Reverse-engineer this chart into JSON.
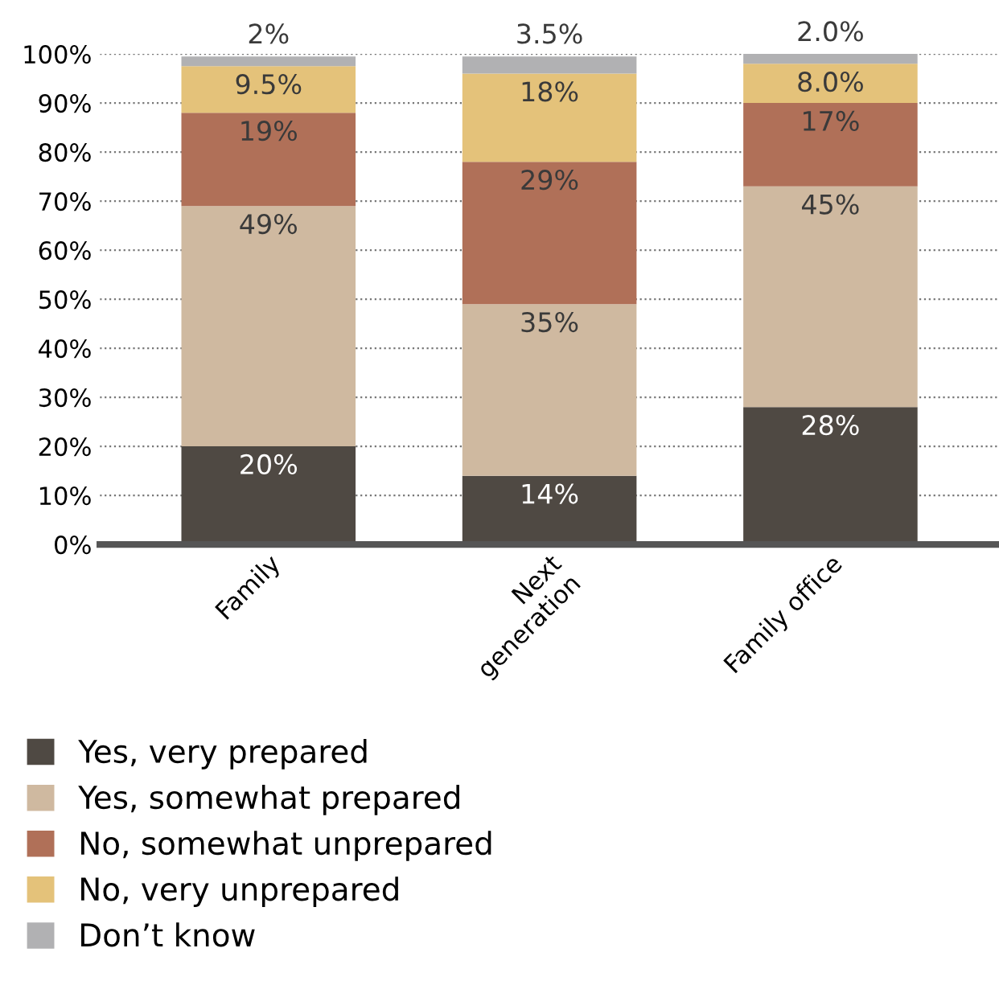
{
  "chart_data": {
    "type": "bar",
    "stacked": true,
    "categories": [
      "Family",
      "Next\ngeneration",
      "Family office"
    ],
    "series": [
      {
        "name": "Yes, very prepared",
        "color": "#4f4943",
        "values": [
          20,
          14,
          28
        ],
        "value_labels": [
          "20%",
          "14%",
          "28%"
        ]
      },
      {
        "name": "Yes, somewhat prepared",
        "color": "#cfb9a0",
        "values": [
          49,
          35,
          45
        ],
        "value_labels": [
          "49%",
          "35%",
          "45%"
        ]
      },
      {
        "name": "No, somewhat unprepared",
        "color": "#b07058",
        "values": [
          19,
          29,
          17
        ],
        "value_labels": [
          "19%",
          "29%",
          "17%"
        ]
      },
      {
        "name": "No, very unprepared",
        "color": "#e4c27a",
        "values": [
          9.5,
          18,
          8.0
        ],
        "value_labels": [
          "9.5%",
          "18%",
          "8.0%"
        ]
      },
      {
        "name": "Don’t know",
        "color": "#b1b1b3",
        "values": [
          2,
          3.5,
          2.0
        ],
        "value_labels": [
          "2%",
          "3.5%",
          "2.0%"
        ]
      }
    ],
    "ylim": [
      0,
      100
    ],
    "yticks": [
      {
        "value": 0,
        "label": "0%"
      },
      {
        "value": 10,
        "label": "10%"
      },
      {
        "value": 20,
        "label": "20%"
      },
      {
        "value": 30,
        "label": "30%"
      },
      {
        "value": 40,
        "label": "40%"
      },
      {
        "value": 50,
        "label": "50%"
      },
      {
        "value": 60,
        "label": "60%"
      },
      {
        "value": 70,
        "label": "70%"
      },
      {
        "value": 80,
        "label": "80%"
      },
      {
        "value": 90,
        "label": "90%"
      },
      {
        "value": 100,
        "label": "100%"
      }
    ],
    "grid": "y",
    "legend": "bottom"
  }
}
